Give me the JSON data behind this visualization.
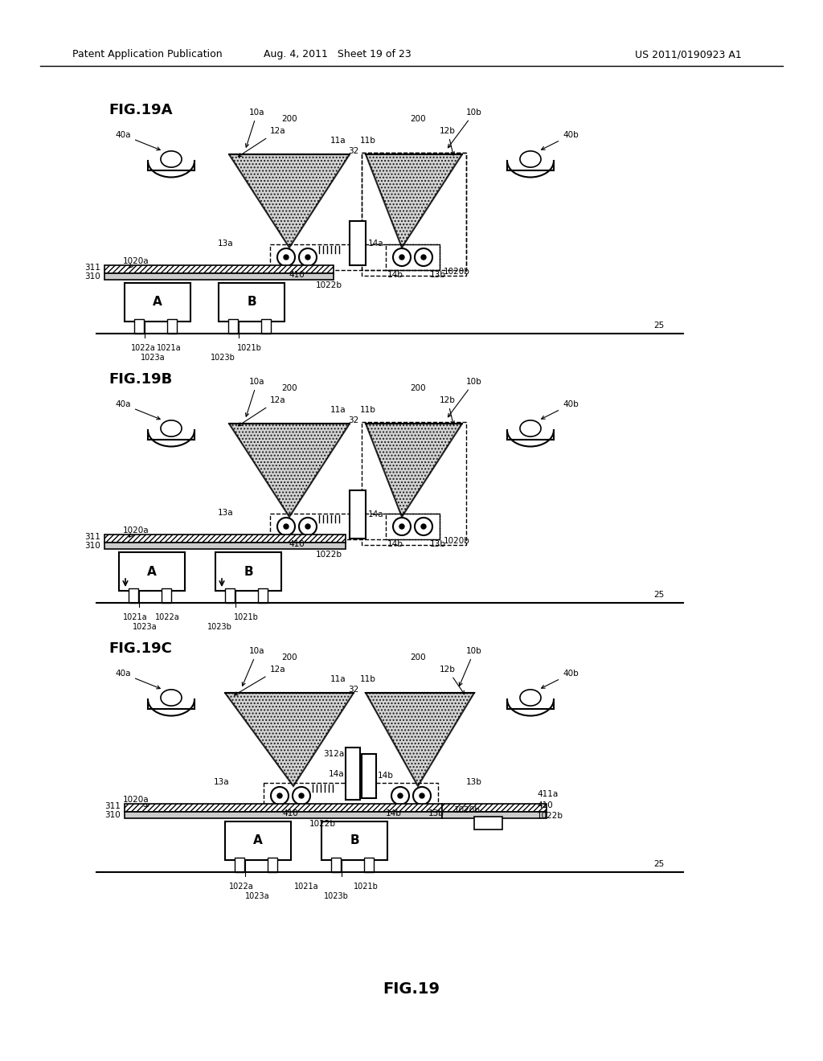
{
  "page_header_left": "Patent Application Publication",
  "page_header_center": "Aug. 4, 2011   Sheet 19 of 23",
  "page_header_right": "US 2011/0190923 A1",
  "fig_caption": "FIG.19",
  "background_color": "#ffffff",
  "line_color": "#000000",
  "fig19a_label": "FIG.19A",
  "fig19b_label": "FIG.19B",
  "fig19c_label": "FIG.19C"
}
